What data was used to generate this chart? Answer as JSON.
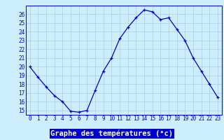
{
  "hours": [
    0,
    1,
    2,
    3,
    4,
    5,
    6,
    7,
    8,
    9,
    10,
    11,
    12,
    13,
    14,
    15,
    16,
    17,
    18,
    19,
    20,
    21,
    22,
    23
  ],
  "temps": [
    20.0,
    18.8,
    17.7,
    16.7,
    16.0,
    14.9,
    14.8,
    15.0,
    17.3,
    19.5,
    21.0,
    23.2,
    24.5,
    25.6,
    26.5,
    26.3,
    25.4,
    25.6,
    24.3,
    23.0,
    21.0,
    19.5,
    18.0,
    16.5
  ],
  "xlabel": "Graphe des températures (°c)",
  "xlim": [
    -0.5,
    23.5
  ],
  "ylim": [
    14.5,
    27.0
  ],
  "yticks": [
    15,
    16,
    17,
    18,
    19,
    20,
    21,
    22,
    23,
    24,
    25,
    26
  ],
  "xticks": [
    0,
    1,
    2,
    3,
    4,
    5,
    6,
    7,
    8,
    9,
    10,
    11,
    12,
    13,
    14,
    15,
    16,
    17,
    18,
    19,
    20,
    21,
    22,
    23
  ],
  "line_color": "#0000cc",
  "marker": "+",
  "bg_color": "#cceeff",
  "grid_color": "#aaccdd",
  "tick_label_color": "#0000cc",
  "xlabel_bg": "#0000cc",
  "xlabel_text_color": "#ffffff",
  "spine_color": "#0000cc",
  "tick_fontsize": 5.5,
  "xlabel_fontsize": 7.5
}
